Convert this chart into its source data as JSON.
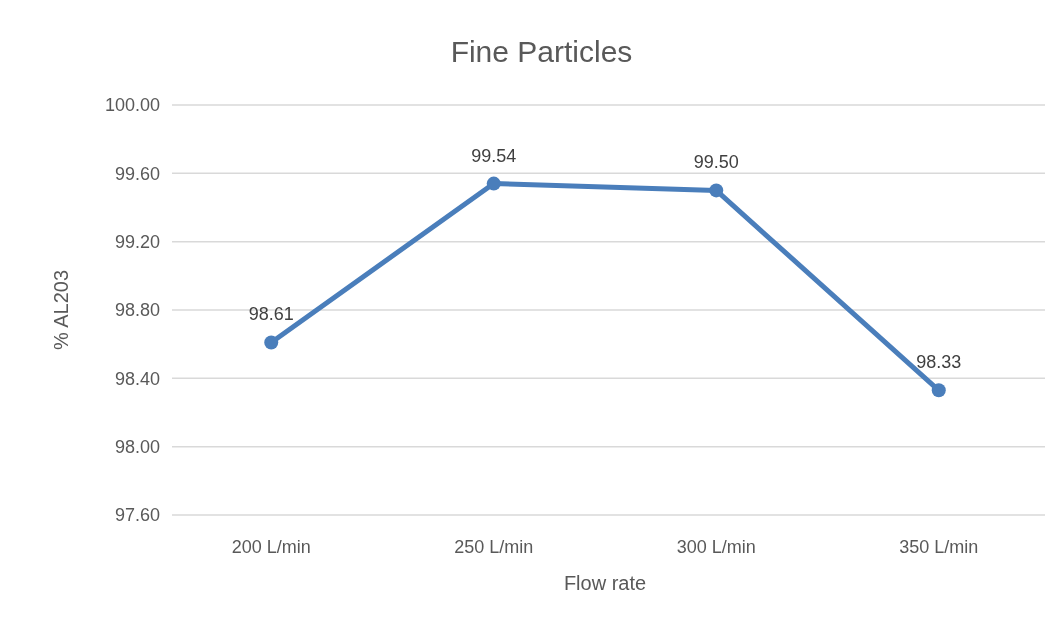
{
  "chart_data": {
    "type": "line",
    "title": "Fine Particles",
    "xlabel": "Flow rate",
    "ylabel": "% AL203",
    "categories": [
      "200 L/min",
      "250 L/min",
      "300 L/min",
      "350 L/min"
    ],
    "series": [
      {
        "color": "#4a7ebb",
        "values": [
          98.61,
          99.54,
          99.5,
          98.33
        ],
        "value_labels": [
          "98.61",
          "99.54",
          "99.50",
          "98.33"
        ]
      }
    ],
    "ylim": [
      97.6,
      100
    ],
    "yticks": [
      {
        "value": 97.6,
        "label": "97.60"
      },
      {
        "value": 98,
        "label": "98.00"
      },
      {
        "value": 98.4,
        "label": "98.40"
      },
      {
        "value": 98.8,
        "label": "98.80"
      },
      {
        "value": 99.2,
        "label": "99.20"
      },
      {
        "value": 99.6,
        "label": "99.60"
      },
      {
        "value": 100,
        "label": "100.00"
      }
    ],
    "grid": "y",
    "marker": "circle",
    "line_style": "solid"
  }
}
